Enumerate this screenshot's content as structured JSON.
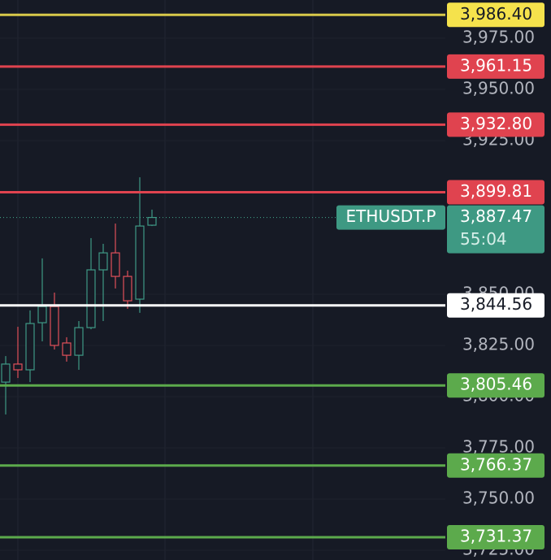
{
  "chart_data": {
    "type": "candlestick",
    "categories": [
      null,
      null,
      null,
      null,
      null,
      null,
      null,
      null,
      null,
      null,
      null,
      null,
      null
    ],
    "open": [
      3807.1,
      3815.9,
      3813.1,
      3836.1,
      3844.0,
      3826.2,
      3820.2,
      3833.7,
      3861.9,
      3870.2,
      3858.7,
      3847.6,
      3883.7
    ],
    "high": [
      3819.8,
      3834.1,
      3842.1,
      3867.5,
      3850.8,
      3829.0,
      3836.9,
      3877.4,
      3874.6,
      3884.5,
      3861.5,
      3907.1,
      3891.3
    ],
    "low": [
      3791.3,
      3809.1,
      3807.1,
      3827.0,
      3823.0,
      3817.1,
      3813.1,
      3832.9,
      3836.9,
      3852.8,
      3842.9,
      3840.9,
      3883.3
    ],
    "close": [
      3815.9,
      3813.1,
      3835.7,
      3844.0,
      3825.0,
      3820.2,
      3833.7,
      3861.9,
      3870.2,
      3858.7,
      3846.8,
      3883.3,
      3887.47
    ],
    "up_color": "#3f9a86",
    "down_color": "#e0505a",
    "ylim": [
      3720.24,
      3993.65
    ],
    "yticks": [
      {
        "value": 3975,
        "label": "3,975.00"
      },
      {
        "value": 3950,
        "label": "3,950.00"
      },
      {
        "value": 3925,
        "label": "3,925.00"
      },
      {
        "value": 3850,
        "label": "3,850.00"
      },
      {
        "value": 3825,
        "label": "3,825.00"
      },
      {
        "value": 3800,
        "label": "3,800.00"
      },
      {
        "value": 3775,
        "label": "3,775.00"
      },
      {
        "value": 3750,
        "label": "3,750.00"
      },
      {
        "value": 3725,
        "label": "3,725.00"
      }
    ],
    "levels": [
      {
        "value": 3986.4,
        "label": "3,986.40",
        "color": "#d8c94a",
        "label_color": "#f5e24c",
        "text_color": "#161a25"
      },
      {
        "value": 3961.15,
        "label": "3,961.15",
        "color": "#e0434f",
        "label_color": "#e0434f",
        "text_color": "#ffffff"
      },
      {
        "value": 3932.8,
        "label": "3,932.80",
        "color": "#e0434f",
        "label_color": "#e0434f",
        "text_color": "#ffffff"
      },
      {
        "value": 3899.81,
        "label": "3,899.81",
        "color": "#e0434f",
        "label_color": "#e0434f",
        "text_color": "#ffffff"
      },
      {
        "value": 3844.56,
        "label": "3,844.56",
        "color": "#ffffff",
        "label_color": "#ffffff",
        "text_color": "#161a25"
      },
      {
        "value": 3805.46,
        "label": "3,805.46",
        "color": "#5caa4c",
        "label_color": "#5caa4c",
        "text_color": "#ffffff"
      },
      {
        "value": 3766.37,
        "label": "3,766.37",
        "color": "#5caa4c",
        "label_color": "#5caa4c",
        "text_color": "#ffffff"
      },
      {
        "value": 3731.37,
        "label": "3,731.37",
        "color": "#5caa4c",
        "label_color": "#5caa4c",
        "text_color": "#ffffff"
      }
    ],
    "current_price": {
      "value": 3887.47,
      "label": "3,887.47",
      "symbol": "ETHUSDT.P",
      "countdown": "55:04",
      "color": "#3e9983"
    }
  }
}
